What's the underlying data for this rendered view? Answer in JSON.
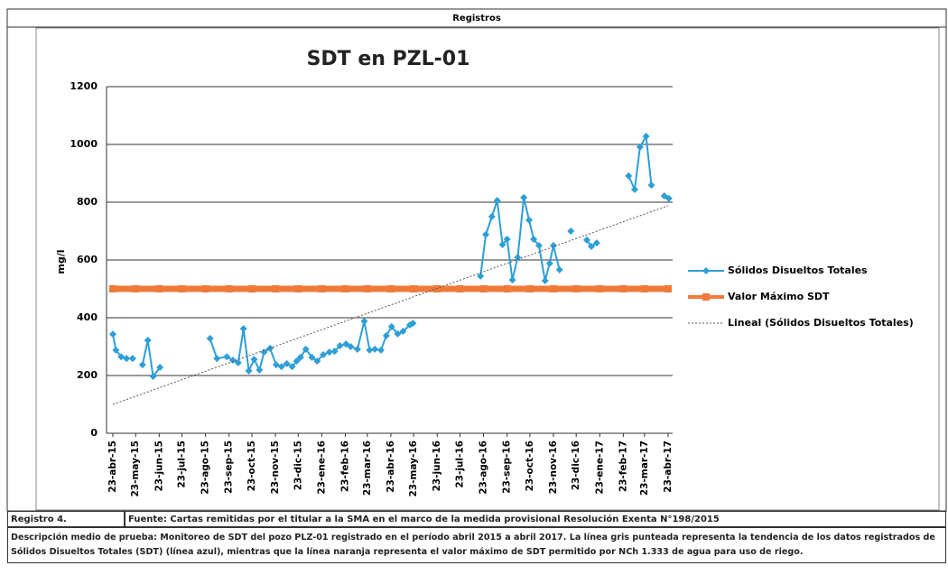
{
  "header": {
    "title": "Registros"
  },
  "chart_data": {
    "type": "line",
    "title": "SDT en PZL-01",
    "y_label": "mg/l",
    "ylim": [
      0,
      1200
    ],
    "yticks": [
      0,
      200,
      400,
      600,
      800,
      1000,
      1200
    ],
    "grid": true,
    "xlim": [
      "2015-04-23",
      "2017-04-23"
    ],
    "xticks": [
      {
        "value": "2015-04-23",
        "label": "23-abr-15"
      },
      {
        "value": "2015-05-23",
        "label": "23-may-15"
      },
      {
        "value": "2015-06-23",
        "label": "23-jun-15"
      },
      {
        "value": "2015-07-23",
        "label": "23-jul-15"
      },
      {
        "value": "2015-08-23",
        "label": "23-ago-15"
      },
      {
        "value": "2015-09-23",
        "label": "23-sep-15"
      },
      {
        "value": "2015-10-23",
        "label": "23-oct-15"
      },
      {
        "value": "2015-11-23",
        "label": "23-nov-15"
      },
      {
        "value": "2015-12-23",
        "label": "23-dic-15"
      },
      {
        "value": "2016-01-23",
        "label": "23-ene-16"
      },
      {
        "value": "2016-02-23",
        "label": "23-feb-16"
      },
      {
        "value": "2016-03-23",
        "label": "23-mar-16"
      },
      {
        "value": "2016-04-23",
        "label": "23-abr-16"
      },
      {
        "value": "2016-05-23",
        "label": "23-may-16"
      },
      {
        "value": "2016-06-23",
        "label": "23-jun-16"
      },
      {
        "value": "2016-07-23",
        "label": "23-jul-16"
      },
      {
        "value": "2016-08-23",
        "label": "23-ago-16"
      },
      {
        "value": "2016-09-23",
        "label": "23-sep-16"
      },
      {
        "value": "2016-10-23",
        "label": "23-oct-16"
      },
      {
        "value": "2016-11-23",
        "label": "23-nov-16"
      },
      {
        "value": "2016-12-23",
        "label": "23-dic-16"
      },
      {
        "value": "2017-01-23",
        "label": "23-ene-17"
      },
      {
        "value": "2017-02-23",
        "label": "23-feb-17"
      },
      {
        "value": "2017-03-23",
        "label": "23-mar-17"
      },
      {
        "value": "2017-04-23",
        "label": "23-abr-17"
      }
    ],
    "series": [
      {
        "name": "Sólidos Disueltos Totales",
        "color": "#2e9fd6",
        "marker": "diamond",
        "x": [
          "2015-04-23",
          "2015-04-27",
          "2015-05-04",
          "2015-05-11",
          "2015-05-19",
          "2015-05-25",
          "2015-06-01",
          "2015-06-08",
          "2015-06-15",
          "2015-06-24",
          "2015-07-27",
          "2015-08-29",
          "2015-09-07",
          "2015-09-20",
          "2015-09-28",
          "2015-10-05",
          "2015-10-12",
          "2015-10-19",
          "2015-10-26",
          "2015-11-02",
          "2015-11-08",
          "2015-11-16",
          "2015-11-24",
          "2015-12-01",
          "2015-12-08",
          "2015-12-15",
          "2015-12-21",
          "2015-12-26",
          "2016-01-02",
          "2016-01-10",
          "2016-01-17",
          "2016-01-25",
          "2016-02-02",
          "2016-02-09",
          "2016-02-16",
          "2016-02-24",
          "2016-03-01",
          "2016-03-10",
          "2016-03-19",
          "2016-03-26",
          "2016-04-02",
          "2016-04-10",
          "2016-04-17",
          "2016-04-24",
          "2016-05-02",
          "2016-05-09",
          "2016-05-18",
          "2016-05-22",
          "2016-07-05",
          "2016-08-19",
          "2016-08-26",
          "2016-09-03",
          "2016-09-10",
          "2016-09-17",
          "2016-09-23",
          "2016-09-30",
          "2016-10-07",
          "2016-10-15",
          "2016-10-22",
          "2016-10-28",
          "2016-11-04",
          "2016-11-12",
          "2016-11-18",
          "2016-11-23",
          "2016-12-01",
          "2016-12-08",
          "2016-12-16",
          "2016-12-26",
          "2017-01-06",
          "2017-01-12",
          "2017-01-19",
          "2017-02-10",
          "2017-03-02",
          "2017-03-10",
          "2017-03-17",
          "2017-03-25",
          "2017-04-01",
          "2017-04-10",
          "2017-04-18",
          "2017-04-24"
        ],
        "values": [
          343,
          288,
          265,
          259,
          259,
          null,
          237,
          322,
          197,
          228,
          null,
          328,
          259,
          265,
          253,
          244,
          362,
          216,
          256,
          219,
          281,
          294,
          237,
          231,
          241,
          231,
          250,
          263,
          291,
          263,
          250,
          272,
          281,
          284,
          303,
          309,
          300,
          291,
          388,
          288,
          291,
          288,
          338,
          369,
          344,
          353,
          375,
          381,
          null,
          544,
          688,
          750,
          806,
          653,
          672,
          531,
          609,
          816,
          738,
          672,
          650,
          528,
          588,
          650,
          566,
          null,
          700,
          null,
          669,
          647,
          659,
          null,
          891,
          844,
          991,
          1028,
          859,
          null,
          822,
          813
        ]
      },
      {
        "name": "Valor Máximo SDT",
        "color": "#f07a3a",
        "marker": "square",
        "x": [
          "2015-04-23",
          "2015-05-23",
          "2015-06-23",
          "2015-07-23",
          "2015-08-23",
          "2015-09-23",
          "2015-10-23",
          "2015-11-23",
          "2015-12-23",
          "2016-01-23",
          "2016-02-23",
          "2016-03-23",
          "2016-04-23",
          "2016-05-23",
          "2016-06-23",
          "2016-07-23",
          "2016-08-23",
          "2016-09-23",
          "2016-10-23",
          "2016-11-23",
          "2016-12-23",
          "2017-01-23",
          "2017-02-23",
          "2017-03-23",
          "2017-04-23"
        ],
        "values": [
          500,
          500,
          500,
          500,
          500,
          500,
          500,
          500,
          500,
          500,
          500,
          500,
          500,
          500,
          500,
          500,
          500,
          500,
          500,
          500,
          500,
          500,
          500,
          500,
          500
        ]
      },
      {
        "name": "Lineal (Sólidos Disueltos Totales)",
        "color": "#555555",
        "marker": "none",
        "dashed": true,
        "x": [
          "2015-04-23",
          "2017-04-23"
        ],
        "values": [
          100,
          788
        ]
      }
    ]
  },
  "footer": {
    "record": "Registro 4.",
    "source": "Fuente: Cartas remitidas por el titular a la SMA en el marco de la medida provisional Resolución Exenta N°198/2015",
    "description": "Descripción medio de prueba: Monitoreo de SDT del pozo PLZ-01 registrado en el período abril 2015 a abril 2017. La línea gris punteada representa la tendencia de los datos registrados de Sólidos Disueltos Totales (SDT) (línea azul), mientras que la línea naranja representa el valor máximo de SDT permitido por NCh 1.333 de agua para uso de riego."
  }
}
